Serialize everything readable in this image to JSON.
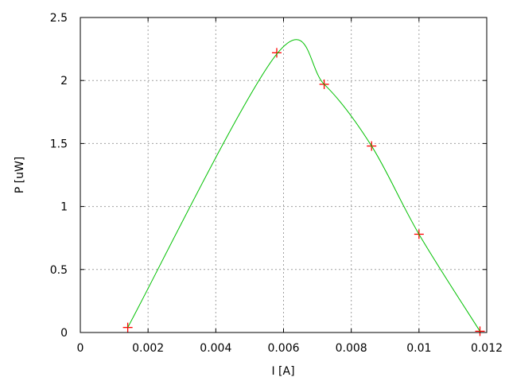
{
  "chart_data": {
    "type": "scatter",
    "title": "",
    "xlabel": "I [A]",
    "ylabel": "P [uW]",
    "xlim": [
      0,
      0.012
    ],
    "ylim": [
      0,
      2.5
    ],
    "x_ticks": [
      "0",
      "0.002",
      "0.004",
      "0.006",
      "0.008",
      "0.01",
      "0.012"
    ],
    "y_ticks": [
      "0",
      "0.5",
      "1",
      "1.5",
      "2",
      "2.5"
    ],
    "grid": true,
    "series": [
      {
        "marker": "plus",
        "color": "#ff0000",
        "x": [
          0.0014,
          0.0058,
          0.0072,
          0.0086,
          0.01,
          0.0118
        ],
        "y": [
          0.04,
          2.22,
          1.97,
          1.48,
          0.78,
          0.01
        ]
      },
      {
        "style": "line",
        "color": "#00c000",
        "x": [
          0.0014,
          0.0058,
          0.0072,
          0.0086,
          0.01,
          0.0118
        ],
        "y": [
          0.04,
          2.21,
          1.97,
          1.48,
          0.78,
          0.01
        ]
      }
    ]
  }
}
